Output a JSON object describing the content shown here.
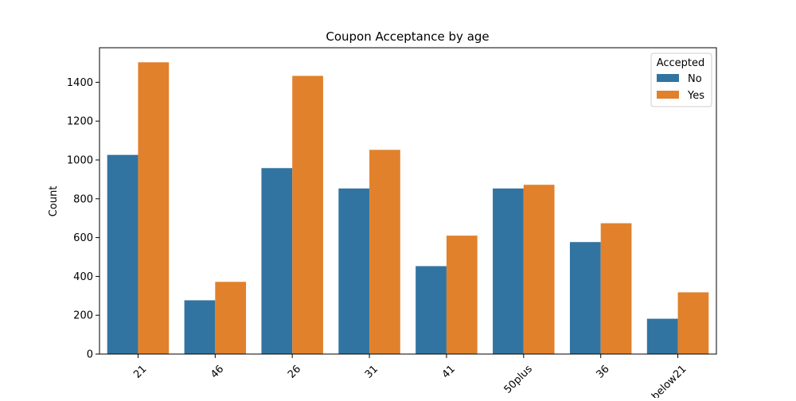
{
  "chart_data": {
    "type": "bar",
    "title": "Coupon Acceptance by age",
    "xlabel": "",
    "ylabel": "Count",
    "categories": [
      "21",
      "46",
      "26",
      "31",
      "41",
      "50plus",
      "36",
      "below21"
    ],
    "series": [
      {
        "name": "No",
        "values": [
          1026,
          277,
          958,
          853,
          453,
          853,
          577,
          182
        ]
      },
      {
        "name": "Yes",
        "values": [
          1503,
          372,
          1433,
          1052,
          610,
          872,
          674,
          318
        ]
      }
    ],
    "colors": {
      "No": "#3274a1",
      "Yes": "#e1812c"
    },
    "yticks": [
      0,
      200,
      400,
      600,
      800,
      1000,
      1200,
      1400
    ],
    "ylim": [
      0,
      1578
    ],
    "grid": false,
    "legend": {
      "title": "Accepted",
      "placement": "top-right",
      "labels": [
        "No",
        "Yes"
      ]
    }
  }
}
